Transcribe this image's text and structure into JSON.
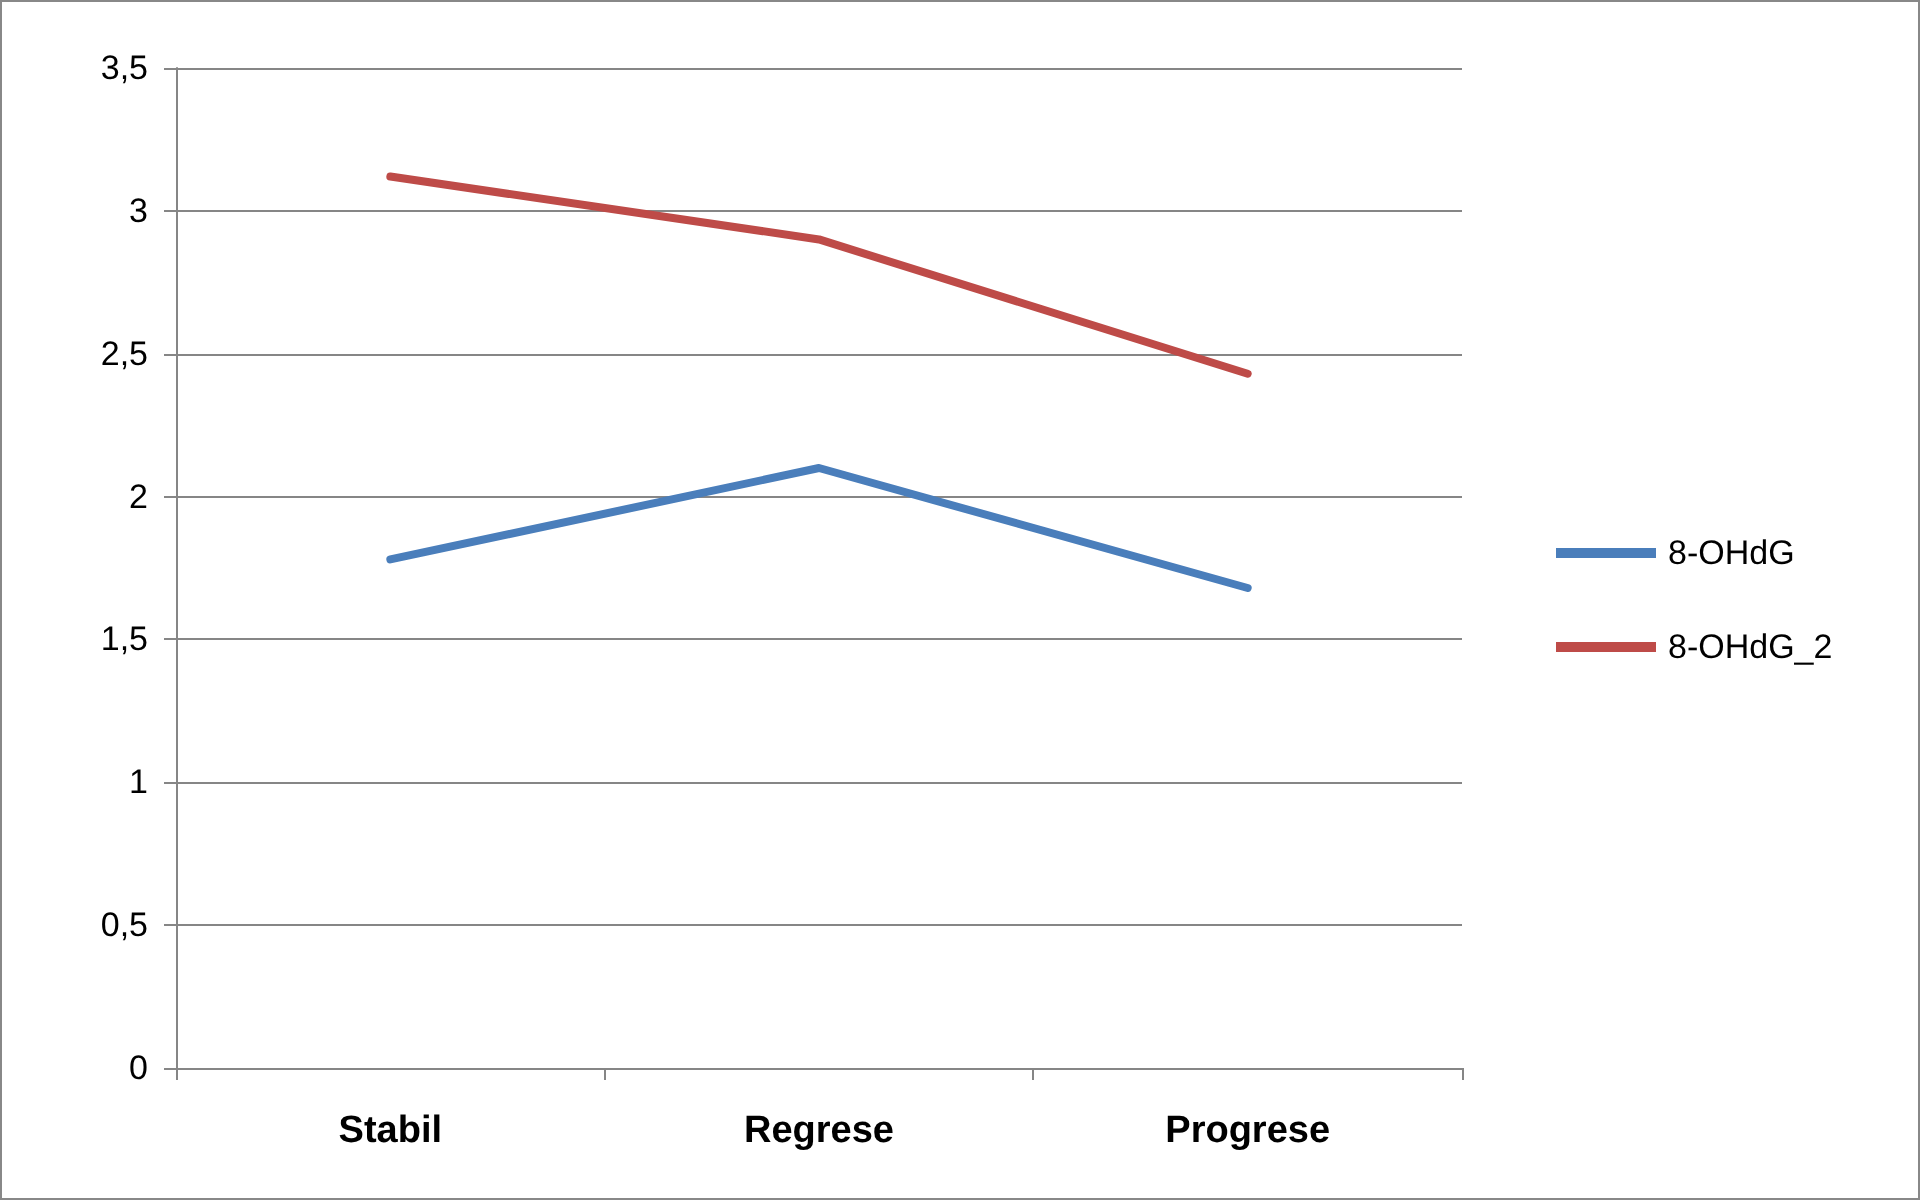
{
  "chart_data": {
    "type": "line",
    "categories": [
      "Stabil",
      "Regrese",
      "Progrese"
    ],
    "series": [
      {
        "name": "8-OHdG",
        "color": "#4a7ebb",
        "values": [
          1.78,
          2.1,
          1.68
        ]
      },
      {
        "name": "8-OHdG_2",
        "color": "#be4b48",
        "values": [
          3.12,
          2.9,
          2.43
        ]
      }
    ],
    "ylim": [
      0,
      3.5
    ],
    "yticks": [
      {
        "value": 0,
        "label": "0"
      },
      {
        "value": 0.5,
        "label": "0,5"
      },
      {
        "value": 1,
        "label": "1"
      },
      {
        "value": 1.5,
        "label": "1,5"
      },
      {
        "value": 2,
        "label": "2"
      },
      {
        "value": 2.5,
        "label": "2,5"
      },
      {
        "value": 3,
        "label": "3"
      },
      {
        "value": 3.5,
        "label": "3,5"
      }
    ],
    "grid": "y",
    "legend": "right",
    "marker": "none",
    "line_style": "solid"
  }
}
